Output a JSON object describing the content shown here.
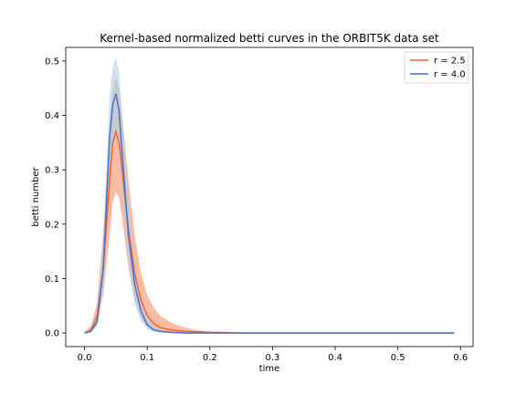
{
  "chart_data": {
    "type": "line",
    "title": "Kernel-based normalized betti curves in the ORBIT5K data set",
    "xlabel": "time",
    "ylabel": "betti number",
    "xlim": [
      -0.03,
      0.62
    ],
    "ylim": [
      -0.025,
      0.525
    ],
    "xticks": [
      0.0,
      0.1,
      0.2,
      0.3,
      0.4,
      0.5,
      0.6
    ],
    "xtick_labels": [
      "0.0",
      "0.1",
      "0.2",
      "0.3",
      "0.4",
      "0.5",
      "0.6"
    ],
    "yticks": [
      0.0,
      0.1,
      0.2,
      0.3,
      0.4,
      0.5
    ],
    "ytick_labels": [
      "0.0",
      "0.1",
      "0.2",
      "0.3",
      "0.4",
      "0.5"
    ],
    "grid": false,
    "legend_position": "upper right",
    "series": [
      {
        "name": "r = 2.5",
        "color": "#f4622a",
        "band_color": "#f7a587",
        "x": [
          0.0,
          0.01,
          0.02,
          0.03,
          0.04,
          0.045,
          0.05,
          0.055,
          0.06,
          0.07,
          0.08,
          0.09,
          0.1,
          0.11,
          0.12,
          0.14,
          0.16,
          0.18,
          0.2,
          0.25,
          0.3,
          0.4,
          0.5,
          0.59
        ],
        "y": [
          0.0,
          0.005,
          0.03,
          0.12,
          0.28,
          0.35,
          0.37,
          0.35,
          0.3,
          0.19,
          0.11,
          0.06,
          0.032,
          0.018,
          0.01,
          0.005,
          0.003,
          0.002,
          0.001,
          0.0,
          0.0,
          0.0,
          0.0,
          0.0
        ],
        "lower": [
          0.0,
          0.002,
          0.015,
          0.07,
          0.18,
          0.24,
          0.26,
          0.25,
          0.21,
          0.12,
          0.06,
          0.028,
          0.012,
          0.005,
          0.002,
          0.001,
          0.0,
          0.0,
          0.0,
          0.0,
          0.0,
          0.0,
          0.0,
          0.0
        ],
        "upper": [
          0.003,
          0.012,
          0.055,
          0.19,
          0.38,
          0.45,
          0.47,
          0.45,
          0.4,
          0.28,
          0.18,
          0.11,
          0.07,
          0.048,
          0.032,
          0.018,
          0.01,
          0.005,
          0.003,
          0.001,
          0.0,
          0.0,
          0.0,
          0.0
        ]
      },
      {
        "name": "r = 4.0",
        "color": "#4a6fd1",
        "band_color": "#a9d2ea",
        "x": [
          0.0,
          0.01,
          0.02,
          0.03,
          0.04,
          0.045,
          0.05,
          0.055,
          0.06,
          0.07,
          0.08,
          0.09,
          0.1,
          0.11,
          0.12,
          0.14,
          0.16,
          0.18,
          0.2,
          0.25,
          0.3,
          0.4,
          0.5,
          0.59
        ],
        "y": [
          0.0,
          0.003,
          0.02,
          0.12,
          0.36,
          0.42,
          0.44,
          0.41,
          0.33,
          0.18,
          0.09,
          0.04,
          0.015,
          0.006,
          0.003,
          0.001,
          0.0,
          0.0,
          0.0,
          0.0,
          0.0,
          0.0,
          0.0,
          0.0
        ],
        "lower": [
          0.0,
          0.001,
          0.012,
          0.08,
          0.28,
          0.34,
          0.36,
          0.33,
          0.26,
          0.13,
          0.055,
          0.022,
          0.007,
          0.002,
          0.001,
          0.0,
          0.0,
          0.0,
          0.0,
          0.0,
          0.0,
          0.0,
          0.0,
          0.0
        ],
        "upper": [
          0.002,
          0.006,
          0.035,
          0.17,
          0.44,
          0.49,
          0.505,
          0.48,
          0.4,
          0.24,
          0.13,
          0.065,
          0.028,
          0.012,
          0.006,
          0.002,
          0.001,
          0.0,
          0.0,
          0.0,
          0.0,
          0.0,
          0.0,
          0.0
        ]
      }
    ]
  }
}
